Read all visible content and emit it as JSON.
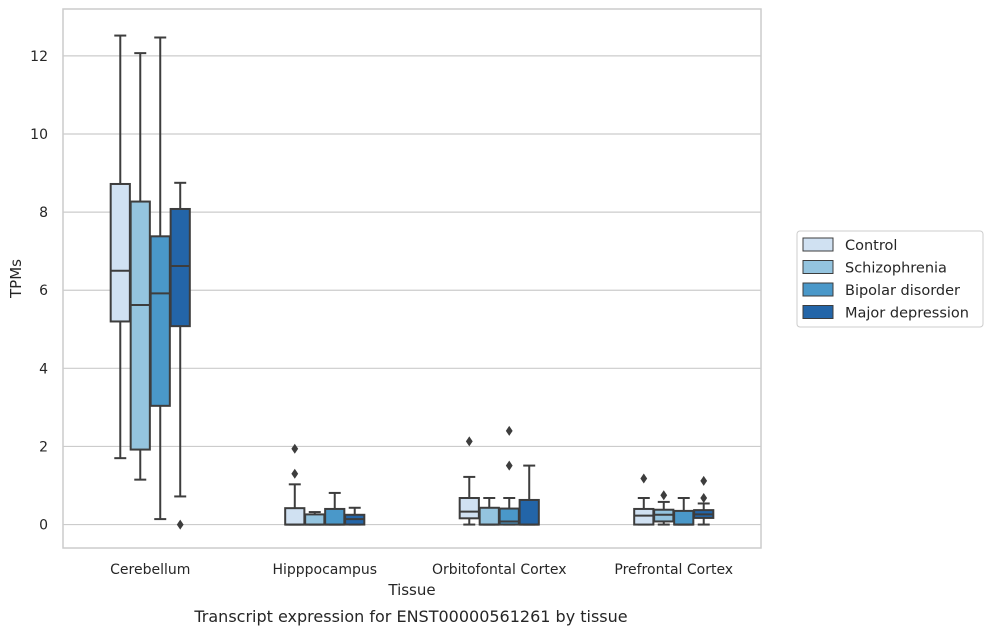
{
  "chart_data": {
    "type": "box",
    "xlabel": "Tissue",
    "ylabel": "TPMs",
    "caption": "Transcript expression for ENST00000561261 by tissue",
    "ylim": [
      -0.6,
      13.2
    ],
    "yticks": [
      0,
      2,
      4,
      6,
      8,
      10,
      12
    ],
    "grid": "horizontal",
    "legend_position": "right",
    "categories": [
      "Cerebellum",
      "Hipppocampus",
      "Orbitofontal Cortex",
      "Prefrontal Cortex"
    ],
    "series": [
      {
        "name": "Control",
        "color": "#d0e1f2",
        "boxes": [
          {
            "whisker_low": 1.7,
            "q1": 5.2,
            "median": 6.5,
            "q3": 8.72,
            "whisker_high": 12.52,
            "outliers": []
          },
          {
            "whisker_low": 0.0,
            "q1": 0.0,
            "median": 0.0,
            "q3": 0.42,
            "whisker_high": 1.03,
            "outliers": [
              1.3,
              1.94
            ]
          },
          {
            "whisker_low": 0.0,
            "q1": 0.16,
            "median": 0.33,
            "q3": 0.68,
            "whisker_high": 1.22,
            "outliers": [
              2.13
            ]
          },
          {
            "whisker_low": 0.0,
            "q1": 0.0,
            "median": 0.23,
            "q3": 0.4,
            "whisker_high": 0.68,
            "outliers": [
              1.18
            ]
          }
        ]
      },
      {
        "name": "Schizophrenia",
        "color": "#94c4df",
        "boxes": [
          {
            "whisker_low": 1.15,
            "q1": 1.92,
            "median": 5.62,
            "q3": 8.27,
            "whisker_high": 12.07,
            "outliers": []
          },
          {
            "whisker_low": 0.0,
            "q1": 0.0,
            "median": 0.0,
            "q3": 0.26,
            "whisker_high": 0.32,
            "outliers": []
          },
          {
            "whisker_low": 0.0,
            "q1": 0.0,
            "median": 0.0,
            "q3": 0.43,
            "whisker_high": 0.68,
            "outliers": []
          },
          {
            "whisker_low": 0.0,
            "q1": 0.08,
            "median": 0.25,
            "q3": 0.38,
            "whisker_high": 0.58,
            "outliers": [
              0.75
            ]
          }
        ]
      },
      {
        "name": "Bipolar disorder",
        "color": "#4a98c9",
        "boxes": [
          {
            "whisker_low": 0.14,
            "q1": 3.04,
            "median": 5.92,
            "q3": 7.38,
            "whisker_high": 12.47,
            "outliers": []
          },
          {
            "whisker_low": 0.0,
            "q1": 0.0,
            "median": 0.0,
            "q3": 0.4,
            "whisker_high": 0.81,
            "outliers": []
          },
          {
            "whisker_low": 0.0,
            "q1": 0.0,
            "median": 0.08,
            "q3": 0.41,
            "whisker_high": 0.68,
            "outliers": [
              1.51,
              2.4
            ]
          },
          {
            "whisker_low": 0.0,
            "q1": 0.0,
            "median": 0.0,
            "q3": 0.35,
            "whisker_high": 0.68,
            "outliers": []
          }
        ]
      },
      {
        "name": "Major depression",
        "color": "#2365a8",
        "boxes": [
          {
            "whisker_low": 0.72,
            "q1": 5.08,
            "median": 6.62,
            "q3": 8.08,
            "whisker_high": 8.75,
            "outliers": [
              0.0
            ]
          },
          {
            "whisker_low": 0.0,
            "q1": 0.0,
            "median": 0.14,
            "q3": 0.25,
            "whisker_high": 0.43,
            "outliers": []
          },
          {
            "whisker_low": 0.0,
            "q1": 0.0,
            "median": 0.0,
            "q3": 0.63,
            "whisker_high": 1.51,
            "outliers": []
          },
          {
            "whisker_low": 0.0,
            "q1": 0.17,
            "median": 0.26,
            "q3": 0.37,
            "whisker_high": 0.54,
            "outliers": [
              0.68,
              1.12
            ]
          }
        ]
      }
    ]
  }
}
